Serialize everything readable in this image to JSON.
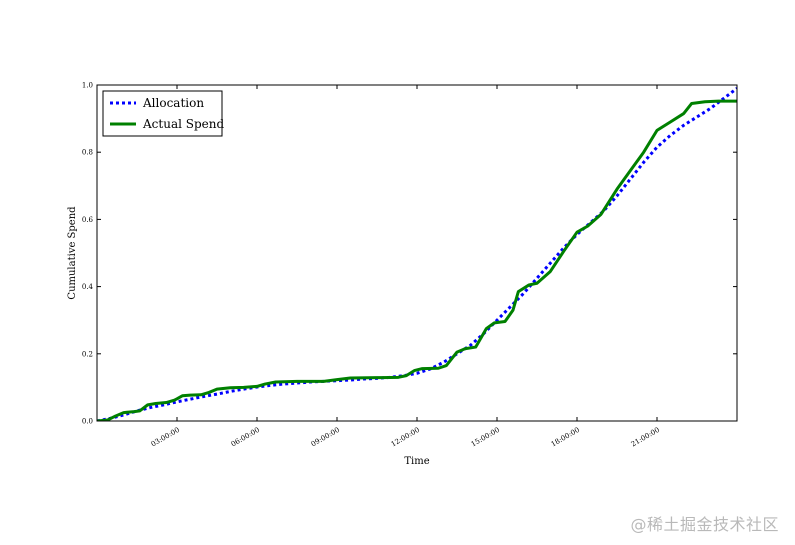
{
  "chart_data": {
    "type": "line",
    "title": "",
    "xlabel": "Time",
    "ylabel": "Cumulative Spend",
    "xlim": [
      "00:00:00",
      "24:00:00"
    ],
    "ylim": [
      0.0,
      1.0
    ],
    "x_ticks": [
      {
        "label": "03:00:00",
        "hour": 3
      },
      {
        "label": "06:00:00",
        "hour": 6
      },
      {
        "label": "09:00:00",
        "hour": 9
      },
      {
        "label": "12:00:00",
        "hour": 12
      },
      {
        "label": "15:00:00",
        "hour": 15
      },
      {
        "label": "18:00:00",
        "hour": 18
      },
      {
        "label": "21:00:00",
        "hour": 21
      }
    ],
    "y_ticks": [
      "0.0",
      "0.2",
      "0.4",
      "0.6",
      "0.8",
      "1.0"
    ],
    "legend_position": "top-left",
    "grid": false,
    "series": [
      {
        "name": "Allocation",
        "style": "dotted",
        "color": "#0000ff",
        "points": [
          [
            0.0,
            0.0
          ],
          [
            0.5,
            0.008
          ],
          [
            1.0,
            0.018
          ],
          [
            1.5,
            0.03
          ],
          [
            2.0,
            0.04
          ],
          [
            2.5,
            0.048
          ],
          [
            3.0,
            0.057
          ],
          [
            3.5,
            0.065
          ],
          [
            4.0,
            0.073
          ],
          [
            4.5,
            0.08
          ],
          [
            5.0,
            0.088
          ],
          [
            5.5,
            0.095
          ],
          [
            6.0,
            0.101
          ],
          [
            6.5,
            0.106
          ],
          [
            7.0,
            0.11
          ],
          [
            7.5,
            0.113
          ],
          [
            8.0,
            0.116
          ],
          [
            8.5,
            0.118
          ],
          [
            9.0,
            0.12
          ],
          [
            9.5,
            0.122
          ],
          [
            10.0,
            0.125
          ],
          [
            10.5,
            0.127
          ],
          [
            11.0,
            0.13
          ],
          [
            11.5,
            0.135
          ],
          [
            12.0,
            0.142
          ],
          [
            12.5,
            0.155
          ],
          [
            13.0,
            0.175
          ],
          [
            13.5,
            0.2
          ],
          [
            14.0,
            0.225
          ],
          [
            14.5,
            0.26
          ],
          [
            15.0,
            0.3
          ],
          [
            15.5,
            0.34
          ],
          [
            16.0,
            0.38
          ],
          [
            16.5,
            0.425
          ],
          [
            17.0,
            0.47
          ],
          [
            17.5,
            0.515
          ],
          [
            18.0,
            0.555
          ],
          [
            18.5,
            0.59
          ],
          [
            19.0,
            0.625
          ],
          [
            19.5,
            0.67
          ],
          [
            20.0,
            0.72
          ],
          [
            20.5,
            0.77
          ],
          [
            21.0,
            0.815
          ],
          [
            21.5,
            0.85
          ],
          [
            22.0,
            0.88
          ],
          [
            22.5,
            0.905
          ],
          [
            23.0,
            0.93
          ],
          [
            23.5,
            0.96
          ],
          [
            24.0,
            0.99
          ]
        ]
      },
      {
        "name": "Actual Spend",
        "style": "solid",
        "color": "#008000",
        "points": [
          [
            0.0,
            0.0
          ],
          [
            0.4,
            0.003
          ],
          [
            0.7,
            0.015
          ],
          [
            1.0,
            0.025
          ],
          [
            1.4,
            0.028
          ],
          [
            1.6,
            0.03
          ],
          [
            1.9,
            0.048
          ],
          [
            2.2,
            0.052
          ],
          [
            2.6,
            0.055
          ],
          [
            2.9,
            0.062
          ],
          [
            3.0,
            0.066
          ],
          [
            3.2,
            0.075
          ],
          [
            3.5,
            0.077
          ],
          [
            3.9,
            0.078
          ],
          [
            4.2,
            0.085
          ],
          [
            4.5,
            0.095
          ],
          [
            5.0,
            0.099
          ],
          [
            5.5,
            0.1
          ],
          [
            6.0,
            0.103
          ],
          [
            6.3,
            0.11
          ],
          [
            6.7,
            0.116
          ],
          [
            7.5,
            0.118
          ],
          [
            8.5,
            0.118
          ],
          [
            9.0,
            0.123
          ],
          [
            9.5,
            0.128
          ],
          [
            10.5,
            0.129
          ],
          [
            11.3,
            0.13
          ],
          [
            11.6,
            0.135
          ],
          [
            11.9,
            0.15
          ],
          [
            12.2,
            0.156
          ],
          [
            12.8,
            0.157
          ],
          [
            13.1,
            0.165
          ],
          [
            13.5,
            0.205
          ],
          [
            13.8,
            0.215
          ],
          [
            14.2,
            0.22
          ],
          [
            14.6,
            0.275
          ],
          [
            14.9,
            0.292
          ],
          [
            15.3,
            0.296
          ],
          [
            15.6,
            0.33
          ],
          [
            15.8,
            0.385
          ],
          [
            16.2,
            0.405
          ],
          [
            16.5,
            0.41
          ],
          [
            17.0,
            0.445
          ],
          [
            17.5,
            0.505
          ],
          [
            18.0,
            0.562
          ],
          [
            18.4,
            0.58
          ],
          [
            18.9,
            0.615
          ],
          [
            19.5,
            0.69
          ],
          [
            20.0,
            0.745
          ],
          [
            20.5,
            0.8
          ],
          [
            21.0,
            0.865
          ],
          [
            21.5,
            0.89
          ],
          [
            22.0,
            0.915
          ],
          [
            22.3,
            0.945
          ],
          [
            22.8,
            0.95
          ],
          [
            23.3,
            0.952
          ],
          [
            24.0,
            0.952
          ]
        ]
      }
    ]
  },
  "watermark": "@稀土掘金技术社区"
}
